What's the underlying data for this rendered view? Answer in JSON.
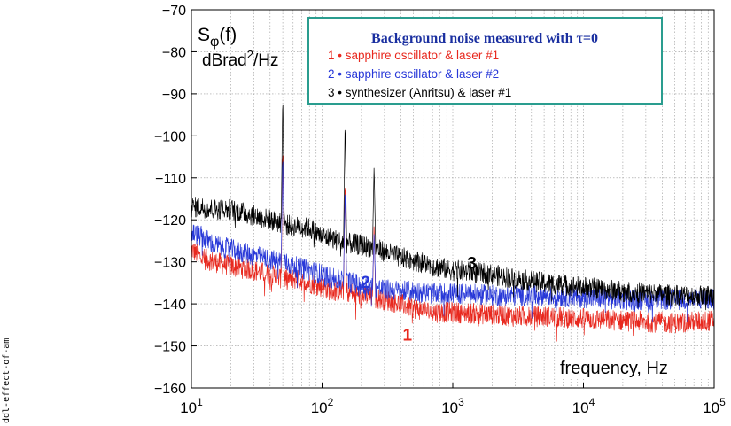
{
  "side_label": "ddl-effect-of-am",
  "chart_data": {
    "type": "line",
    "y_symbol": "S",
    "y_subscript": "φ",
    "y_argument": "(f)",
    "y_unit_prefix": "dBrad",
    "y_unit_exponent": "2",
    "y_unit_suffix": "/Hz",
    "xlabel": "frequency, Hz",
    "x_scale": "log",
    "xlim": [
      10,
      100000
    ],
    "ylim": [
      -160,
      -70
    ],
    "x_ticks": [
      {
        "base": "10",
        "exp": "1"
      },
      {
        "base": "10",
        "exp": "2"
      },
      {
        "base": "10",
        "exp": "3"
      },
      {
        "base": "10",
        "exp": "4"
      },
      {
        "base": "10",
        "exp": "5"
      }
    ],
    "y_ticks": [
      "−70",
      "−80",
      "−90",
      "−100",
      "−110",
      "−120",
      "−130",
      "−140",
      "−150",
      "−160"
    ],
    "grid": true,
    "legend": {
      "placement": "top-center",
      "title": "Background noise measured with τ=0",
      "entries": [
        {
          "num": "1",
          "text": "• sapphire oscillator & laser #1",
          "color": "#e8281e"
        },
        {
          "num": "2",
          "text": "• sapphire oscillator & laser #2",
          "color": "#2838d8"
        },
        {
          "num": "3",
          "text": "• synthesizer (Anritsu) & laser #1",
          "color": "#000000"
        }
      ]
    },
    "series": [
      {
        "label": "1",
        "color": "#e8281e",
        "x": [
          10,
          12,
          15,
          20,
          30,
          40,
          50,
          60,
          80,
          100,
          120,
          150,
          200,
          300,
          400,
          500,
          700,
          1000,
          2000,
          3000,
          5000,
          10000,
          20000,
          50000,
          100000
        ],
        "y": [
          -127,
          -129,
          -130,
          -131,
          -132,
          -133,
          -134,
          -134,
          -135,
          -136,
          -137,
          -137,
          -138,
          -139,
          -140,
          -141,
          -142,
          -142,
          -142.5,
          -143,
          -143,
          -143.5,
          -144,
          -144.5,
          -144
        ]
      },
      {
        "label": "2",
        "color": "#2838d8",
        "x": [
          10,
          12,
          15,
          20,
          30,
          40,
          50,
          60,
          80,
          100,
          120,
          150,
          200,
          300,
          400,
          500,
          700,
          1000,
          2000,
          3000,
          5000,
          10000,
          20000,
          50000,
          100000
        ],
        "y": [
          -123,
          -124,
          -126,
          -127,
          -128.5,
          -129.5,
          -130,
          -131,
          -132,
          -133,
          -134,
          -134.5,
          -135.5,
          -136.5,
          -137,
          -137,
          -137.5,
          -137.5,
          -138,
          -138,
          -138,
          -138.5,
          -139,
          -139,
          -139
        ]
      },
      {
        "label": "3",
        "color": "#000000",
        "x": [
          10,
          12,
          15,
          20,
          30,
          40,
          50,
          60,
          80,
          100,
          120,
          150,
          200,
          300,
          400,
          500,
          700,
          1000,
          2000,
          3000,
          5000,
          10000,
          20000,
          50000,
          100000
        ],
        "y": [
          -117,
          -117,
          -117.5,
          -117.5,
          -119,
          -120,
          -121,
          -121.5,
          -122,
          -124,
          -124.5,
          -125.5,
          -126,
          -127.5,
          -129,
          -129.5,
          -131,
          -132,
          -133,
          -134,
          -135,
          -136,
          -137,
          -138,
          -138
        ]
      }
    ],
    "spikes": [
      {
        "series": "3",
        "x": 50,
        "y": -90
      },
      {
        "series": "1",
        "x": 50,
        "y": -102
      },
      {
        "series": "2",
        "x": 50,
        "y": -104
      },
      {
        "series": "3",
        "x": 150,
        "y": -96
      },
      {
        "series": "1",
        "x": 150,
        "y": -110
      },
      {
        "series": "2",
        "x": 150,
        "y": -112
      },
      {
        "series": "3",
        "x": 250,
        "y": -107
      },
      {
        "series": "1",
        "x": 250,
        "y": -121
      },
      {
        "series": "2",
        "x": 250,
        "y": -123
      }
    ],
    "annotations": [
      {
        "text": "1",
        "x": 450,
        "y": -147,
        "color": "#e8281e"
      },
      {
        "text": "2",
        "x": 215,
        "y": -134.5,
        "color": "#2838d8"
      },
      {
        "text": "3",
        "x": 1400,
        "y": -130,
        "color": "#000000"
      }
    ]
  }
}
